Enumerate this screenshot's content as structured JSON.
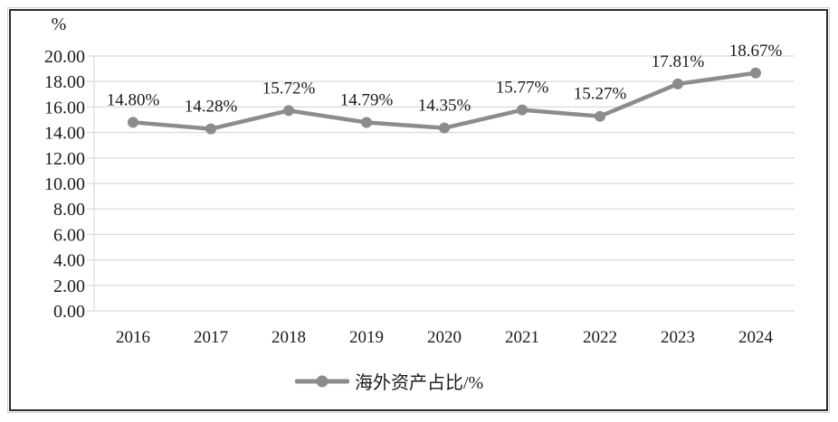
{
  "frame": {
    "border_color": "#2d2d2d",
    "background": "#ffffff"
  },
  "colors": {
    "series_line": "#8c8c8c",
    "grid": "#d9d9d9",
    "axis": "#d9d9d9",
    "text": "#1a1a1a"
  },
  "chart_data": {
    "type": "line",
    "title": "",
    "unit_label": "%",
    "xlabel": "",
    "ylabel": "%",
    "categories": [
      "2016",
      "2017",
      "2018",
      "2019",
      "2020",
      "2021",
      "2022",
      "2023",
      "2024"
    ],
    "series": [
      {
        "name": "海外资产占比/%",
        "values": [
          14.8,
          14.28,
          15.72,
          14.79,
          14.35,
          15.77,
          15.27,
          17.81,
          18.67
        ],
        "point_labels": [
          "14.80%",
          "14.28%",
          "15.72%",
          "14.79%",
          "14.35%",
          "15.77%",
          "15.27%",
          "17.81%",
          "18.67%"
        ],
        "color": "#8c8c8c",
        "marker": "circle"
      }
    ],
    "ylim": [
      0,
      20
    ],
    "ytick_step": 2,
    "ytick_labels": [
      "0.00",
      "2.00",
      "4.00",
      "6.00",
      "8.00",
      "10.00",
      "12.00",
      "14.00",
      "16.00",
      "18.00",
      "20.00"
    ],
    "grid": true,
    "legend_position": "bottom",
    "legend_entries": [
      "海外资产占比/%"
    ]
  }
}
